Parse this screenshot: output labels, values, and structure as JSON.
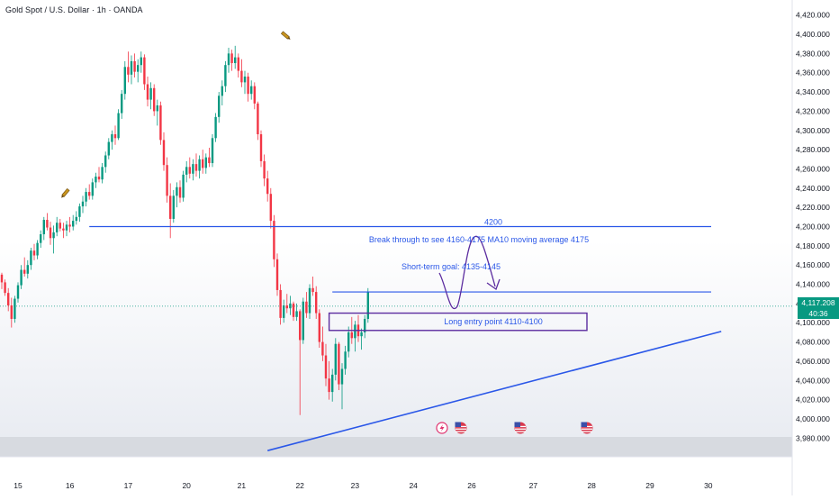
{
  "header": {
    "title": "Gold Spot / U.S. Dollar · 1h · OANDA"
  },
  "price_badge": {
    "price": "4,117.208",
    "countdown": "40:36"
  },
  "colors": {
    "up": "#089981",
    "down": "#f23645",
    "drawing": "#2a57e8",
    "box_border": "#5b2c9f",
    "gridline": "#f0f3fa",
    "axis_text": "#131722"
  },
  "annotations": {
    "level_label": "4200",
    "breakout_text": "Break through to see 4160-4175 MA10 moving average 4175",
    "short_term_text": "Short-term goal: 4135-4145",
    "long_entry_text": "Long entry point 4110-4100"
  },
  "icons": [
    "pencil-icon",
    "pencil-icon",
    "flash-icon",
    "us-flag-icon",
    "us-flag-icon",
    "us-flag-icon"
  ],
  "chart_data": {
    "type": "candlestick",
    "title": "Gold Spot / U.S. Dollar · 1h · OANDA",
    "xlabel": "",
    "ylabel": "",
    "ylim": [
      3970,
      4430
    ],
    "y_ticks": [
      "4,420.000",
      "4,400.000",
      "4,380.000",
      "4,360.000",
      "4,340.000",
      "4,320.000",
      "4,300.000",
      "4,280.000",
      "4,260.000",
      "4,240.000",
      "4,220.000",
      "4,200.000",
      "4,180.000",
      "4,160.000",
      "4,140.000",
      "4,120.000",
      "4,100.000",
      "4,080.000",
      "4,060.000",
      "4,040.000",
      "4,020.000",
      "4,000.000",
      "3,980.000"
    ],
    "x_ticks": [
      "15",
      "16",
      "17",
      "20",
      "21",
      "22",
      "23",
      "24",
      "26",
      "27",
      "28",
      "29",
      "30"
    ],
    "x_tick_bars": [
      5,
      21,
      39,
      57,
      74,
      92,
      109,
      127,
      145,
      164,
      182,
      200,
      218
    ],
    "last_price": 4117.208,
    "grid": false,
    "levels": [
      {
        "label": "4200",
        "price": 4200
      },
      {
        "label": "",
        "price": 4132
      }
    ],
    "zones": [
      {
        "label": "Long entry point 4110-4100",
        "price_top": 4110,
        "price_bottom": 4092
      }
    ],
    "trendline": {
      "from": {
        "bar": 82,
        "price": 3967
      },
      "to": {
        "bar": 222,
        "price": 4091
      }
    },
    "ohlc": [
      [
        4150,
        4152,
        4135,
        4142
      ],
      [
        4142,
        4145,
        4128,
        4131
      ],
      [
        4131,
        4136,
        4112,
        4118
      ],
      [
        4118,
        4126,
        4095,
        4104
      ],
      [
        4104,
        4128,
        4100,
        4125
      ],
      [
        4125,
        4142,
        4121,
        4139
      ],
      [
        4139,
        4160,
        4135,
        4155
      ],
      [
        4155,
        4168,
        4148,
        4151
      ],
      [
        4151,
        4165,
        4146,
        4160
      ],
      [
        4160,
        4178,
        4155,
        4175
      ],
      [
        4175,
        4182,
        4165,
        4170
      ],
      [
        4170,
        4186,
        4166,
        4183
      ],
      [
        4183,
        4196,
        4178,
        4192
      ],
      [
        4192,
        4210,
        4186,
        4207
      ],
      [
        4207,
        4214,
        4196,
        4199
      ],
      [
        4199,
        4205,
        4181,
        4188
      ],
      [
        4188,
        4201,
        4172,
        4194
      ],
      [
        4194,
        4210,
        4190,
        4204
      ],
      [
        4204,
        4208,
        4195,
        4198
      ],
      [
        4198,
        4204,
        4188,
        4196
      ],
      [
        4196,
        4206,
        4190,
        4202
      ],
      [
        4202,
        4210,
        4194,
        4200
      ],
      [
        4200,
        4212,
        4196,
        4206
      ],
      [
        4206,
        4216,
        4202,
        4210
      ],
      [
        4210,
        4224,
        4205,
        4221
      ],
      [
        4221,
        4232,
        4214,
        4226
      ],
      [
        4226,
        4240,
        4221,
        4236
      ],
      [
        4236,
        4244,
        4228,
        4232
      ],
      [
        4232,
        4250,
        4228,
        4246
      ],
      [
        4246,
        4256,
        4240,
        4252
      ],
      [
        4252,
        4262,
        4246,
        4249
      ],
      [
        4249,
        4266,
        4245,
        4262
      ],
      [
        4262,
        4278,
        4256,
        4274
      ],
      [
        4274,
        4292,
        4270,
        4288
      ],
      [
        4288,
        4300,
        4280,
        4296
      ],
      [
        4296,
        4305,
        4285,
        4292
      ],
      [
        4292,
        4322,
        4290,
        4318
      ],
      [
        4318,
        4342,
        4312,
        4338
      ],
      [
        4338,
        4372,
        4332,
        4366
      ],
      [
        4366,
        4382,
        4350,
        4358
      ],
      [
        4358,
        4378,
        4348,
        4372
      ],
      [
        4372,
        4380,
        4355,
        4361
      ],
      [
        4361,
        4374,
        4350,
        4368
      ],
      [
        4368,
        4382,
        4360,
        4376
      ],
      [
        4376,
        4379,
        4342,
        4348
      ],
      [
        4348,
        4356,
        4325,
        4332
      ],
      [
        4332,
        4350,
        4322,
        4344
      ],
      [
        4344,
        4348,
        4315,
        4320
      ],
      [
        4320,
        4332,
        4305,
        4326
      ],
      [
        4326,
        4330,
        4285,
        4290
      ],
      [
        4290,
        4298,
        4258,
        4264
      ],
      [
        4264,
        4272,
        4225,
        4232
      ],
      [
        4232,
        4245,
        4188,
        4208
      ],
      [
        4208,
        4238,
        4204,
        4232
      ],
      [
        4232,
        4246,
        4220,
        4241
      ],
      [
        4241,
        4248,
        4225,
        4230
      ],
      [
        4230,
        4258,
        4226,
        4254
      ],
      [
        4254,
        4268,
        4246,
        4262
      ],
      [
        4262,
        4272,
        4250,
        4255
      ],
      [
        4255,
        4270,
        4248,
        4265
      ],
      [
        4265,
        4276,
        4252,
        4258
      ],
      [
        4258,
        4274,
        4250,
        4270
      ],
      [
        4270,
        4280,
        4255,
        4261
      ],
      [
        4261,
        4276,
        4255,
        4272
      ],
      [
        4272,
        4282,
        4262,
        4266
      ],
      [
        4266,
        4296,
        4262,
        4292
      ],
      [
        4292,
        4318,
        4288,
        4314
      ],
      [
        4314,
        4340,
        4308,
        4336
      ],
      [
        4336,
        4352,
        4326,
        4346
      ],
      [
        4346,
        4372,
        4340,
        4368
      ],
      [
        4368,
        4386,
        4360,
        4380
      ],
      [
        4380,
        4384,
        4362,
        4370
      ],
      [
        4370,
        4388,
        4364,
        4376
      ],
      [
        4376,
        4380,
        4355,
        4362
      ],
      [
        4362,
        4374,
        4345,
        4350
      ],
      [
        4350,
        4362,
        4338,
        4356
      ],
      [
        4356,
        4360,
        4330,
        4338
      ],
      [
        4338,
        4352,
        4332,
        4346
      ],
      [
        4346,
        4350,
        4322,
        4328
      ],
      [
        4328,
        4330,
        4290,
        4296
      ],
      [
        4296,
        4300,
        4262,
        4268
      ],
      [
        4268,
        4275,
        4242,
        4250
      ],
      [
        4250,
        4258,
        4226,
        4234
      ],
      [
        4234,
        4240,
        4198,
        4206
      ],
      [
        4206,
        4212,
        4158,
        4166
      ],
      [
        4166,
        4172,
        4128,
        4134
      ],
      [
        4134,
        4140,
        4098,
        4105
      ],
      [
        4105,
        4124,
        4100,
        4118
      ],
      [
        4118,
        4130,
        4110,
        4115
      ],
      [
        4115,
        4128,
        4108,
        4120
      ],
      [
        4120,
        4122,
        4102,
        4106
      ],
      [
        4106,
        4120,
        4102,
        4112
      ],
      [
        4112,
        4114,
        4004,
        4082
      ],
      [
        4082,
        4126,
        4078,
        4122
      ],
      [
        4122,
        4132,
        4105,
        4110
      ],
      [
        4110,
        4140,
        4104,
        4136
      ],
      [
        4136,
        4148,
        4128,
        4132
      ],
      [
        4132,
        4138,
        4104,
        4110
      ],
      [
        4110,
        4114,
        4074,
        4080
      ],
      [
        4080,
        4096,
        4060,
        4066
      ],
      [
        4066,
        4078,
        4034,
        4042
      ],
      [
        4042,
        4060,
        4020,
        4028
      ],
      [
        4028,
        4052,
        4018,
        4046
      ],
      [
        4046,
        4084,
        4040,
        4078
      ],
      [
        4078,
        4080,
        4030,
        4036
      ],
      [
        4036,
        4058,
        4010,
        4052
      ],
      [
        4052,
        4076,
        4046,
        4070
      ],
      [
        4070,
        4096,
        4064,
        4090
      ],
      [
        4090,
        4106,
        4078,
        4084
      ],
      [
        4084,
        4102,
        4070,
        4098
      ],
      [
        4098,
        4108,
        4080,
        4086
      ],
      [
        4086,
        4094,
        4072,
        4090
      ],
      [
        4090,
        4108,
        4084,
        4104
      ],
      [
        4104,
        4136,
        4100,
        4132
      ]
    ]
  }
}
